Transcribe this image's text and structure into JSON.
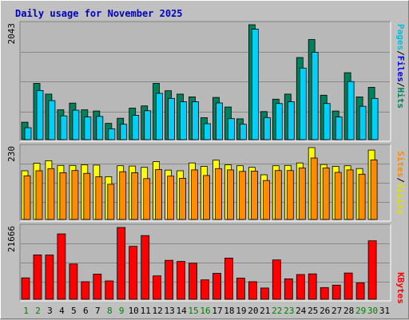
{
  "title": "Daily usage for November 2025",
  "colors": {
    "background": "#c0c0c0",
    "panel": "#b8b8b8",
    "grid": "#888888",
    "hits": "#00805c",
    "files": "#00d0f8",
    "pages": "#00c0e0",
    "visits": "#ffff00",
    "sites": "#ff8c00",
    "kbytes": "#ff0000",
    "weekday": "#000000",
    "weekend": "#008000"
  },
  "labels": {
    "pages": "Pages",
    "files": "Files",
    "hits": "Hits",
    "sites": "Sites",
    "visits": "Visits",
    "kbytes": "KBytes",
    "slash1": "/",
    "slash2": "/",
    "slash3": "/"
  },
  "chart_data": {
    "type": "bar",
    "x_label_color_note": "weekend days shown in green",
    "categories": [
      "1",
      "2",
      "3",
      "4",
      "5",
      "6",
      "7",
      "8",
      "9",
      "10",
      "11",
      "12",
      "13",
      "14",
      "15",
      "16",
      "17",
      "18",
      "19",
      "20",
      "21",
      "22",
      "23",
      "24",
      "25",
      "26",
      "27",
      "28",
      "29",
      "30",
      "31"
    ],
    "weekend": [
      1,
      2,
      8,
      9,
      15,
      16,
      22,
      23,
      29,
      30
    ],
    "hits_panel": {
      "ymax_label": "2043",
      "ymax": 2043,
      "series": [
        {
          "name": "Hits",
          "values": [
            310,
            1000,
            810,
            530,
            650,
            530,
            510,
            290,
            380,
            560,
            600,
            1000,
            870,
            810,
            760,
            390,
            750,
            580,
            370,
            2043,
            500,
            720,
            810,
            1460,
            1780,
            790,
            510,
            1190,
            760,
            930,
            0
          ]
        },
        {
          "name": "Files",
          "values": [
            270,
            930,
            750,
            480,
            580,
            460,
            470,
            250,
            330,
            490,
            570,
            880,
            790,
            730,
            730,
            340,
            710,
            430,
            330,
            2020,
            450,
            700,
            730,
            1330,
            1610,
            700,
            460,
            1090,
            650,
            790,
            0
          ]
        }
      ]
    },
    "visits_panel": {
      "ymax_label": "230",
      "ymax": 230,
      "series": [
        {
          "name": "Visits",
          "values": [
            156,
            180,
            188,
            173,
            173,
            175,
            174,
            137,
            172,
            171,
            167,
            185,
            158,
            156,
            181,
            170,
            190,
            175,
            172,
            167,
            143,
            172,
            173,
            181,
            230,
            176,
            170,
            172,
            163,
            222,
            0
          ]
        },
        {
          "name": "Sites",
          "values": [
            150,
            166,
            173,
            160,
            167,
            158,
            147,
            123,
            163,
            160,
            141,
            170,
            149,
            142,
            169,
            151,
            173,
            169,
            164,
            165,
            135,
            167,
            167,
            175,
            207,
            175,
            161,
            169,
            155,
            201,
            0
          ]
        }
      ]
    },
    "kbytes_panel": {
      "ymax_label": "21666",
      "ymax": 21666,
      "series": [
        {
          "name": "KBytes",
          "values": [
            6450,
            13380,
            13330,
            19710,
            10630,
            5300,
            7590,
            5540,
            21666,
            15970,
            19200,
            7060,
            11740,
            11420,
            10880,
            5840,
            7830,
            12430,
            6390,
            5300,
            3400,
            11870,
            6170,
            7470,
            7650,
            3550,
            4250,
            7910,
            4940,
            17640,
            0
          ]
        }
      ]
    }
  }
}
